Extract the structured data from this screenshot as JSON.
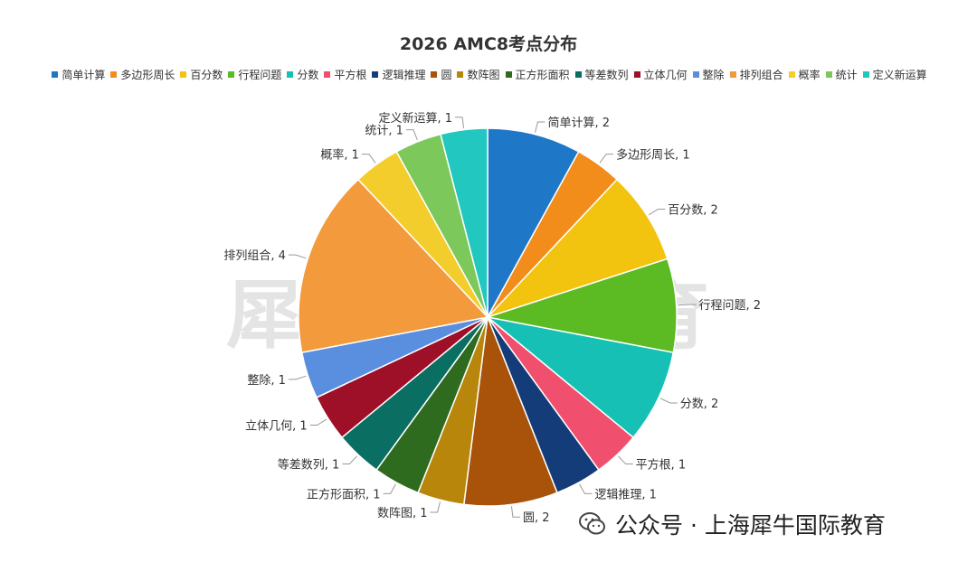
{
  "chart_data": {
    "type": "pie",
    "title": "2026 AMC8考点分布",
    "legend_position": "top",
    "slices": [
      {
        "label": "简单计算",
        "value": 2,
        "color": "#1f77c8"
      },
      {
        "label": "多边形周长",
        "value": 1,
        "color": "#f28c1a"
      },
      {
        "label": "百分数",
        "value": 2,
        "color": "#f2c40f"
      },
      {
        "label": "行程问题",
        "value": 2,
        "color": "#5cba23"
      },
      {
        "label": "分数",
        "value": 2,
        "color": "#17c0b4"
      },
      {
        "label": "平方根",
        "value": 1,
        "color": "#f0506e"
      },
      {
        "label": "逻辑推理",
        "value": 1,
        "color": "#143c78"
      },
      {
        "label": "圆",
        "value": 2,
        "color": "#a8520a"
      },
      {
        "label": "数阵图",
        "value": 1,
        "color": "#b8860b"
      },
      {
        "label": "正方形面积",
        "value": 1,
        "color": "#2e6b1f"
      },
      {
        "label": "等差数列",
        "value": 1,
        "color": "#0b6e62"
      },
      {
        "label": "立体几何",
        "value": 1,
        "color": "#9e0f28"
      },
      {
        "label": "整除",
        "value": 1,
        "color": "#5a8fdf"
      },
      {
        "label": "排列组合",
        "value": 4,
        "color": "#f39a3c"
      },
      {
        "label": "概率",
        "value": 1,
        "color": "#f2cd2b"
      },
      {
        "label": "统计",
        "value": 1,
        "color": "#7cc85a"
      },
      {
        "label": "定义新运算",
        "value": 1,
        "color": "#22c7c0"
      }
    ]
  },
  "watermark": "犀牛国际教育",
  "footer": {
    "icon": "wechat-icon",
    "text": "公众号 · 上海犀牛国际教育"
  }
}
